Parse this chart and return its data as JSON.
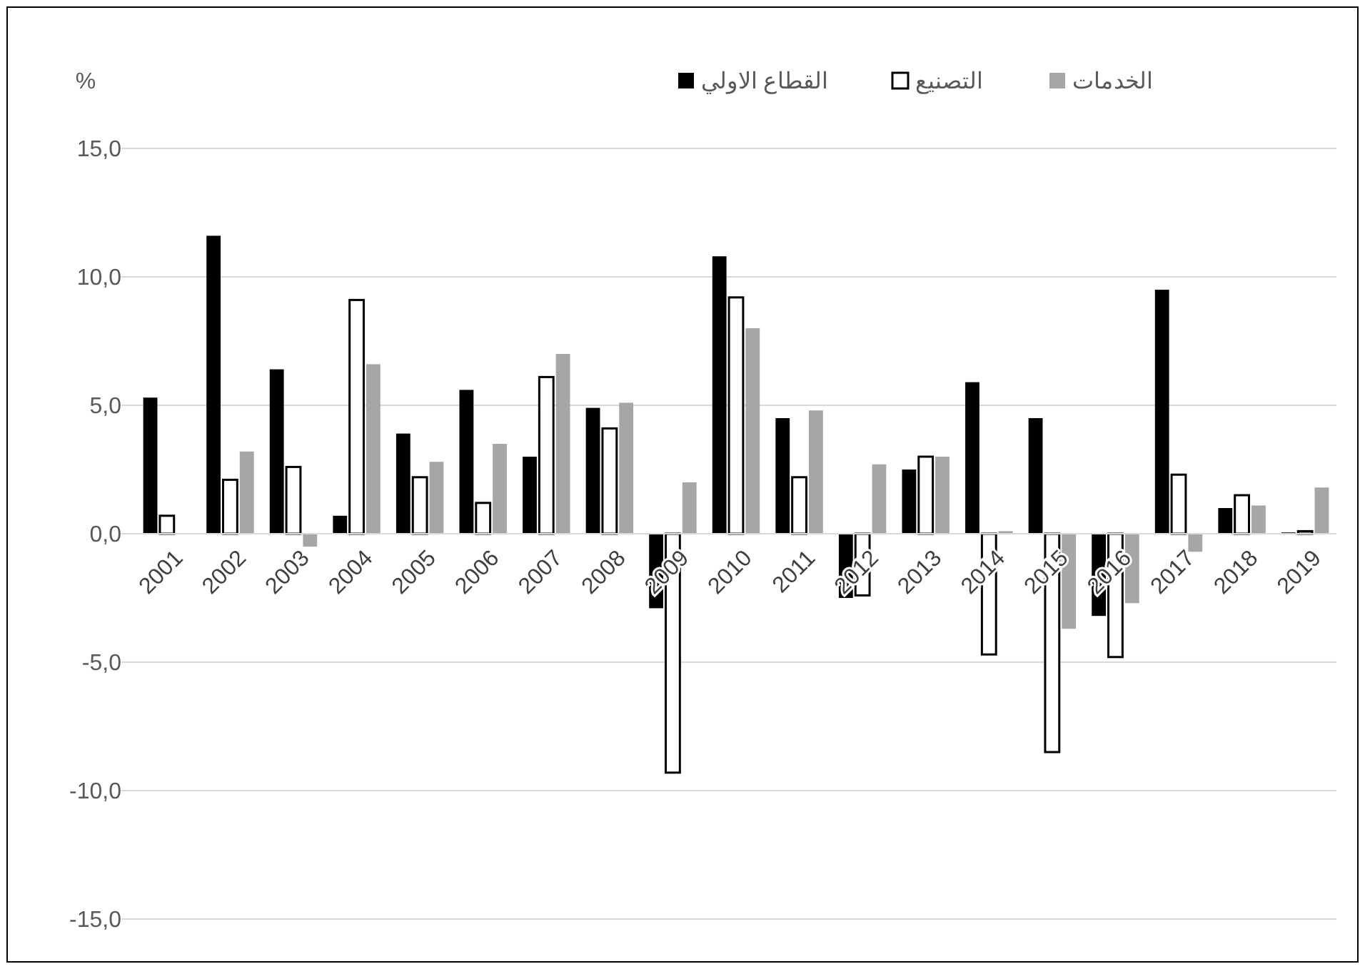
{
  "chart_data": {
    "type": "bar",
    "ylabel": "%",
    "categories": [
      "2001",
      "2002",
      "2003",
      "2004",
      "2005",
      "2006",
      "2007",
      "2008",
      "2009",
      "2010",
      "2011",
      "2012",
      "2013",
      "2014",
      "2015",
      "2016",
      "2017",
      "2018",
      "2019"
    ],
    "series": [
      {
        "name": "القطاع الاولي",
        "color": "#000000",
        "values": [
          5.3,
          11.6,
          6.4,
          0.7,
          3.9,
          5.6,
          3.0,
          4.9,
          -2.9,
          10.8,
          4.5,
          -2.5,
          2.5,
          5.9,
          4.5,
          -3.2,
          9.5,
          1.0,
          0.05
        ]
      },
      {
        "name": "التصنيع",
        "color": "#ffffff",
        "values": [
          0.7,
          2.1,
          2.6,
          9.1,
          2.2,
          1.2,
          6.1,
          4.1,
          -9.3,
          9.2,
          2.2,
          -2.4,
          3.0,
          -4.7,
          -8.5,
          -4.8,
          2.3,
          1.5,
          0.1
        ]
      },
      {
        "name": "الخدمات",
        "color": "#a6a6a6",
        "values": [
          0,
          3.2,
          -0.5,
          6.6,
          2.8,
          3.5,
          7.0,
          5.1,
          2.0,
          8.0,
          4.8,
          2.7,
          3.0,
          0.1,
          -3.7,
          -2.7,
          -0.7,
          1.1,
          1.8
        ]
      }
    ],
    "ylim": [
      -15,
      15
    ],
    "yticks": [
      {
        "value": -15,
        "label": "-15,0"
      },
      {
        "value": -10,
        "label": "-10,0"
      },
      {
        "value": -5,
        "label": "-5,0"
      },
      {
        "value": 0,
        "label": "0,0"
      },
      {
        "value": 5,
        "label": "5,0"
      },
      {
        "value": 10,
        "label": "10,0"
      },
      {
        "value": 15,
        "label": "15,0"
      }
    ],
    "grid": "y",
    "legend": "top"
  }
}
